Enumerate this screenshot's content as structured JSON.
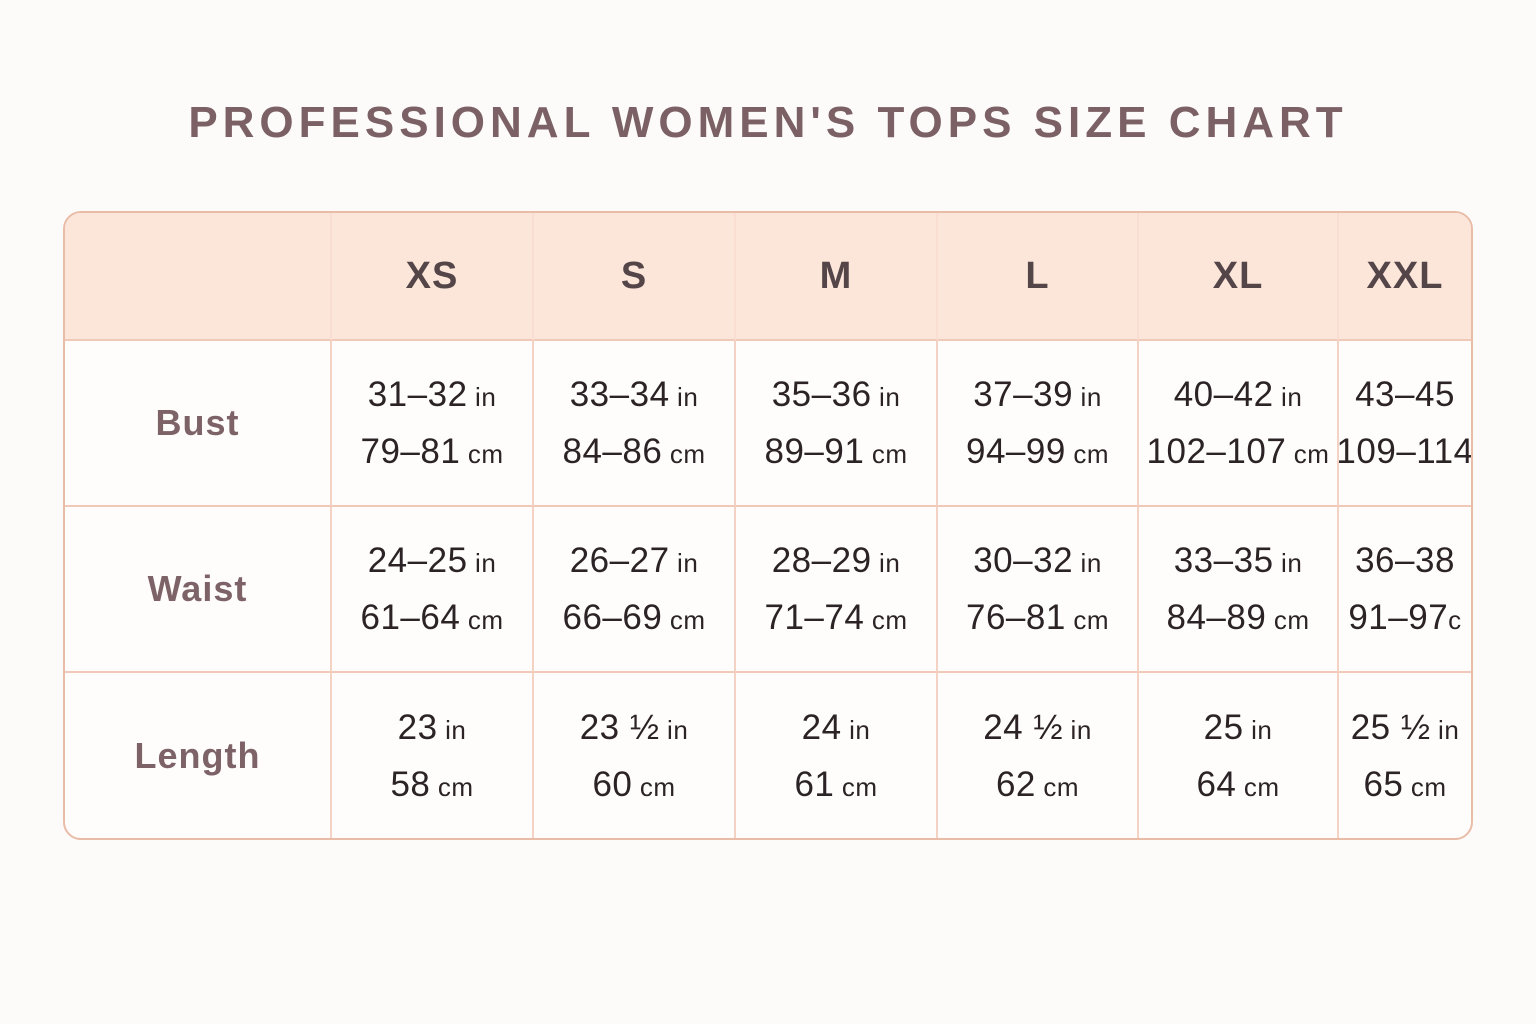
{
  "colors": {
    "page_background": "#fdfbfa",
    "title_text": "#7b6165",
    "header_background": "#fce6da",
    "header_text": "#544549",
    "row_label_text": "#7d6367",
    "cell_text": "#2b2326",
    "table_background": "#fffdfc",
    "outer_border": "#e9bca8",
    "inner_border": "#f0c9b8"
  },
  "chart_data": {
    "type": "table",
    "title": "PROFESSIONAL WOMEN'S TOPS SIZE CHART",
    "columns": [
      "",
      "XS",
      "S",
      "M",
      "L",
      "XL",
      "XXL"
    ],
    "rows": [
      {
        "label": "Bust",
        "cells": [
          {
            "line1": "31–32 in",
            "line2": "79–81 cm"
          },
          {
            "line1": "33–34 in",
            "line2": "84–86 cm"
          },
          {
            "line1": "35–36 in",
            "line2": "89–91 cm"
          },
          {
            "line1": "37–39 in",
            "line2": "94–99 cm"
          },
          {
            "line1": "40–42 in",
            "line2": "102–107 cm"
          },
          {
            "line1": "43–45",
            "line2": "109–114"
          }
        ]
      },
      {
        "label": "Waist",
        "cells": [
          {
            "line1": "24–25 in",
            "line2": "61–64 cm"
          },
          {
            "line1": "26–27 in",
            "line2": "66–69 cm"
          },
          {
            "line1": "28–29 in",
            "line2": "71–74 cm"
          },
          {
            "line1": "30–32 in",
            "line2": "76–81 cm"
          },
          {
            "line1": "33–35 in",
            "line2": "84–89 cm"
          },
          {
            "line1": "36–38",
            "line2": "91–97c"
          }
        ]
      },
      {
        "label": "Length",
        "cells": [
          {
            "line1": "23 in",
            "line2": "58 cm"
          },
          {
            "line1": "23 ½ in",
            "line2": "60 cm"
          },
          {
            "line1": "24 in",
            "line2": "61 cm"
          },
          {
            "line1": "24 ½ in",
            "line2": "62 cm"
          },
          {
            "line1": "25 in",
            "line2": "64 cm"
          },
          {
            "line1": "25 ½ in",
            "line2": "65 cm"
          }
        ]
      }
    ],
    "layout": {
      "grid": true,
      "header_row": true,
      "units": [
        "in",
        "cm"
      ]
    }
  }
}
